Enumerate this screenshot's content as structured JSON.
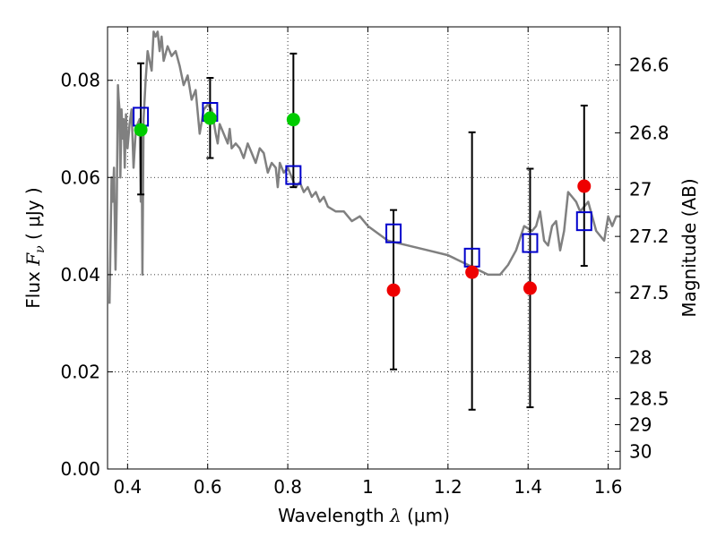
{
  "chart_data": {
    "type": "scatter",
    "xlabel": {
      "prefix": "Wavelength  ",
      "symbol": "λ",
      "unit": " (μm)"
    },
    "ylabel": {
      "prefix": "Flux  ",
      "symbol": "F",
      "subscript": "ν",
      "unit": "  ( μJy )"
    },
    "y2label": "Magnitude (AB)",
    "xlim": [
      0.35,
      1.63
    ],
    "ylim": [
      0.0,
      0.091
    ],
    "xticks": [
      0.4,
      0.6,
      0.8,
      1.0,
      1.2,
      1.4,
      1.6
    ],
    "xtick_labels": [
      "0.4",
      "0.6",
      "0.8",
      "1",
      "1.2",
      "1.4",
      "1.6"
    ],
    "yticks": [
      0.0,
      0.02,
      0.04,
      0.06,
      0.08
    ],
    "ytick_labels": [
      "0.00",
      "0.02",
      "0.04",
      "0.06",
      "0.08"
    ],
    "mag_ticks": [
      26.6,
      26.8,
      27,
      27.2,
      27.5,
      28,
      28.5,
      29,
      30
    ],
    "mag_tick_labels": [
      "26.6",
      "26.8",
      "27",
      "27.2",
      "27.5",
      "28",
      "28.5",
      "29",
      "30"
    ],
    "grid": true,
    "colors": {
      "model_line": "#808080",
      "model_points": "#0000cc",
      "green_points": "#00cc00",
      "red_points": "#ee0000",
      "errorbars": "#000000"
    },
    "model_spectrum": {
      "x": [
        0.355,
        0.36,
        0.363,
        0.366,
        0.37,
        0.373,
        0.376,
        0.378,
        0.38,
        0.382,
        0.385,
        0.388,
        0.39,
        0.393,
        0.396,
        0.4,
        0.405,
        0.41,
        0.415,
        0.42,
        0.425,
        0.43,
        0.433,
        0.435,
        0.437,
        0.44,
        0.445,
        0.45,
        0.455,
        0.46,
        0.465,
        0.47,
        0.475,
        0.48,
        0.485,
        0.49,
        0.5,
        0.51,
        0.52,
        0.53,
        0.54,
        0.55,
        0.56,
        0.57,
        0.58,
        0.59,
        0.6,
        0.61,
        0.62,
        0.625,
        0.63,
        0.64,
        0.65,
        0.655,
        0.66,
        0.67,
        0.68,
        0.69,
        0.7,
        0.71,
        0.72,
        0.73,
        0.74,
        0.75,
        0.76,
        0.77,
        0.775,
        0.78,
        0.79,
        0.8,
        0.81,
        0.82,
        0.83,
        0.84,
        0.85,
        0.86,
        0.87,
        0.88,
        0.89,
        0.9,
        0.92,
        0.94,
        0.96,
        0.98,
        1.0,
        1.05,
        1.1,
        1.15,
        1.2,
        1.25,
        1.3,
        1.33,
        1.35,
        1.37,
        1.39,
        1.41,
        1.42,
        1.43,
        1.44,
        1.45,
        1.46,
        1.47,
        1.48,
        1.49,
        1.5,
        1.51,
        1.52,
        1.53,
        1.55,
        1.57,
        1.59,
        1.6,
        1.61,
        1.62,
        1.63
      ],
      "y": [
        0.034,
        0.06,
        0.055,
        0.062,
        0.041,
        0.055,
        0.079,
        0.076,
        0.074,
        0.06,
        0.074,
        0.068,
        0.072,
        0.062,
        0.073,
        0.066,
        0.071,
        0.074,
        0.062,
        0.069,
        0.071,
        0.072,
        0.055,
        0.07,
        0.04,
        0.072,
        0.08,
        0.086,
        0.084,
        0.082,
        0.09,
        0.089,
        0.09,
        0.086,
        0.089,
        0.084,
        0.087,
        0.085,
        0.086,
        0.083,
        0.079,
        0.081,
        0.076,
        0.078,
        0.069,
        0.074,
        0.075,
        0.074,
        0.069,
        0.067,
        0.071,
        0.069,
        0.067,
        0.07,
        0.066,
        0.067,
        0.066,
        0.064,
        0.067,
        0.065,
        0.063,
        0.066,
        0.065,
        0.061,
        0.063,
        0.062,
        0.058,
        0.063,
        0.061,
        0.062,
        0.06,
        0.058,
        0.059,
        0.057,
        0.058,
        0.056,
        0.057,
        0.055,
        0.056,
        0.054,
        0.053,
        0.053,
        0.051,
        0.052,
        0.05,
        0.047,
        0.046,
        0.045,
        0.044,
        0.042,
        0.04,
        0.04,
        0.042,
        0.045,
        0.05,
        0.049,
        0.05,
        0.053,
        0.047,
        0.046,
        0.05,
        0.051,
        0.045,
        0.049,
        0.057,
        0.056,
        0.055,
        0.053,
        0.055,
        0.049,
        0.047,
        0.052,
        0.05,
        0.052,
        0.052
      ]
    },
    "series": [
      {
        "marker": "square",
        "x": [
          0.433,
          0.606,
          0.814,
          1.064,
          1.26,
          1.405,
          1.54
        ],
        "y": [
          0.0725,
          0.0735,
          0.0605,
          0.0485,
          0.0435,
          0.0465,
          0.051
        ]
      },
      {
        "marker": "circle",
        "x": [
          0.433,
          0.606,
          0.814
        ],
        "y": [
          0.0698,
          0.0722,
          0.0719
        ]
      },
      {
        "marker": "circle",
        "x": [
          1.064,
          1.26,
          1.405,
          1.54
        ],
        "y": [
          0.0368,
          0.0405,
          0.0372,
          0.0582
        ]
      }
    ],
    "errorbars": [
      {
        "x": 0.433,
        "ylow": 0.0565,
        "yhigh": 0.0835
      },
      {
        "x": 0.606,
        "ylow": 0.064,
        "yhigh": 0.0805
      },
      {
        "x": 0.814,
        "ylow": 0.058,
        "yhigh": 0.0855
      },
      {
        "x": 1.064,
        "ylow": 0.0205,
        "yhigh": 0.0533
      },
      {
        "x": 1.26,
        "ylow": 0.0122,
        "yhigh": 0.0693
      },
      {
        "x": 1.405,
        "ylow": 0.0127,
        "yhigh": 0.0618
      },
      {
        "x": 1.54,
        "ylow": 0.0418,
        "yhigh": 0.0748
      }
    ]
  }
}
